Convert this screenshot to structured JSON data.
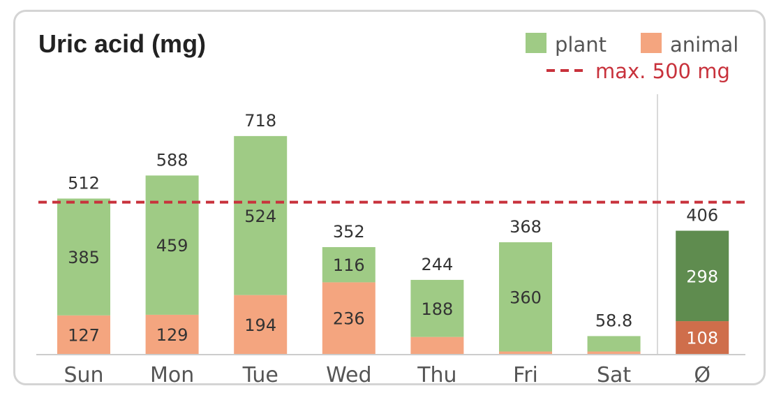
{
  "chart_data": {
    "type": "bar",
    "stacked": true,
    "title": "Uric acid  (mg)",
    "categories": [
      "Sun",
      "Mon",
      "Tue",
      "Wed",
      "Thu",
      "Fri",
      "Sat",
      "Ø"
    ],
    "totals": [
      512,
      588,
      718,
      352,
      244,
      368,
      58.8,
      406
    ],
    "total_labels": [
      "512",
      "588",
      "718",
      "352",
      "244",
      "368",
      "58.8",
      "406"
    ],
    "series": [
      {
        "name": "animal",
        "values": [
          127,
          129,
          194,
          236,
          56,
          8,
          8,
          108
        ],
        "labels": [
          "127",
          "129",
          "194",
          "236",
          "",
          "",
          "",
          "108"
        ],
        "color": "#f4a57f",
        "average_color": "#cf6e4b"
      },
      {
        "name": "plant",
        "values": [
          385,
          459,
          524,
          116,
          188,
          360,
          50.8,
          298
        ],
        "labels": [
          "385",
          "459",
          "524",
          "116",
          "188",
          "360",
          "",
          "298"
        ],
        "color": "#9fcb85",
        "average_color": "#5f8c4f"
      }
    ],
    "reference_line": {
      "label": "max. 500 mg",
      "value": 500,
      "color": "#c8323c",
      "style": "dashed"
    },
    "ylim": [
      0,
      790
    ],
    "grid": false,
    "legend_position": "top-right",
    "average_separator": true
  }
}
